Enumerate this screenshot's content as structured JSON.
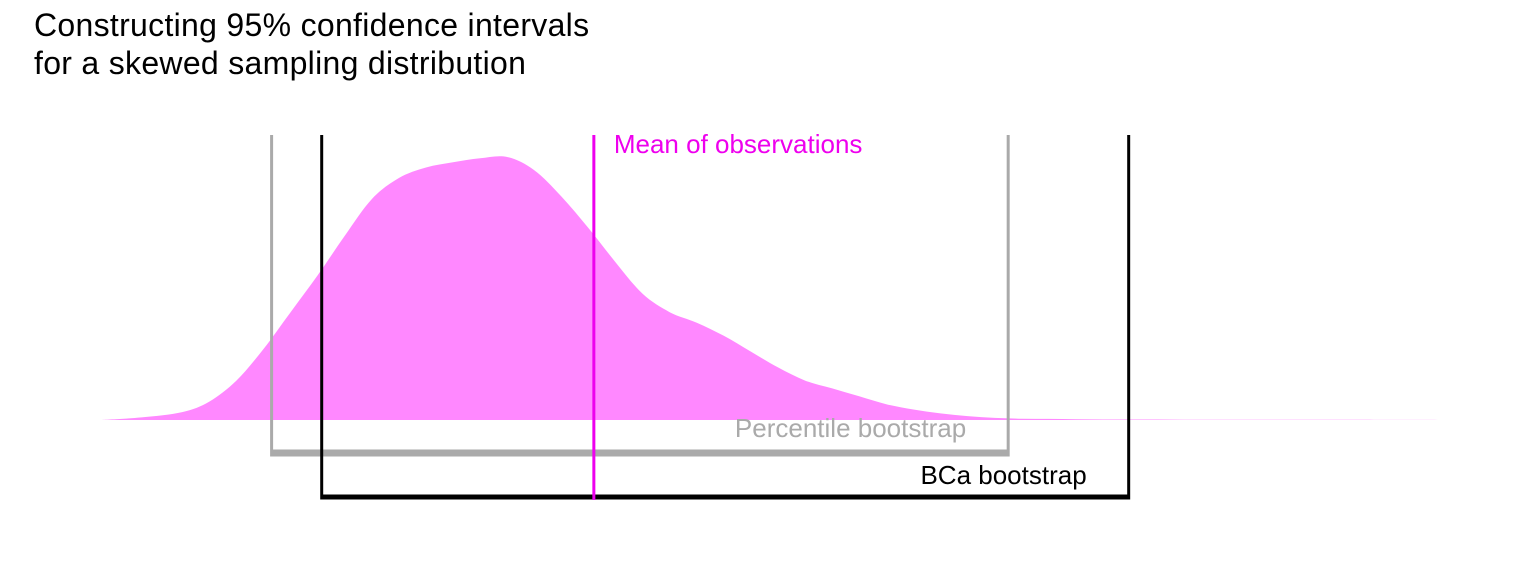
{
  "title_lines": [
    "Constructing 95% confidence intervals",
    "for a skewed sampling distribution"
  ],
  "chart_data": {
    "type": "area",
    "title": "Constructing 95% confidence intervals for a skewed sampling distribution",
    "xlim": [
      0,
      100
    ],
    "ylim": [
      0,
      1
    ],
    "grid": false,
    "density": {
      "color": "#ff88ff",
      "x": [
        0,
        3,
        6,
        8,
        10,
        12,
        14,
        16,
        18,
        20,
        22,
        24,
        26,
        28,
        30,
        32,
        34,
        36,
        38,
        40,
        42,
        44,
        46,
        48,
        50,
        52,
        54,
        56,
        58,
        60,
        62,
        64,
        66,
        68,
        70,
        72,
        74,
        76,
        78,
        80,
        82,
        84,
        86,
        88,
        90,
        93,
        96,
        100
      ],
      "y": [
        0,
        0.01,
        0.03,
        0.07,
        0.15,
        0.27,
        0.41,
        0.55,
        0.7,
        0.84,
        0.92,
        0.96,
        0.98,
        0.995,
        1.0,
        0.95,
        0.85,
        0.73,
        0.6,
        0.48,
        0.41,
        0.37,
        0.32,
        0.26,
        0.2,
        0.15,
        0.12,
        0.09,
        0.06,
        0.04,
        0.025,
        0.015,
        0.008,
        0.005,
        0.004,
        0.003,
        0.002,
        0.002,
        0.002,
        0.001,
        0.001,
        0.001,
        0.001,
        0.001,
        0.001,
        0.001,
        0.0005,
        0
      ]
    },
    "mean": {
      "x": 36.4,
      "label": "Mean of observations",
      "color": "#ee00ee"
    },
    "intervals": [
      {
        "name": "Percentile bootstrap",
        "lower": 12.6,
        "upper": 67.0,
        "color": "#aaaaaa"
      },
      {
        "name": "BCa bootstrap",
        "lower": 16.3,
        "upper": 75.9,
        "color": "#000000"
      }
    ]
  }
}
